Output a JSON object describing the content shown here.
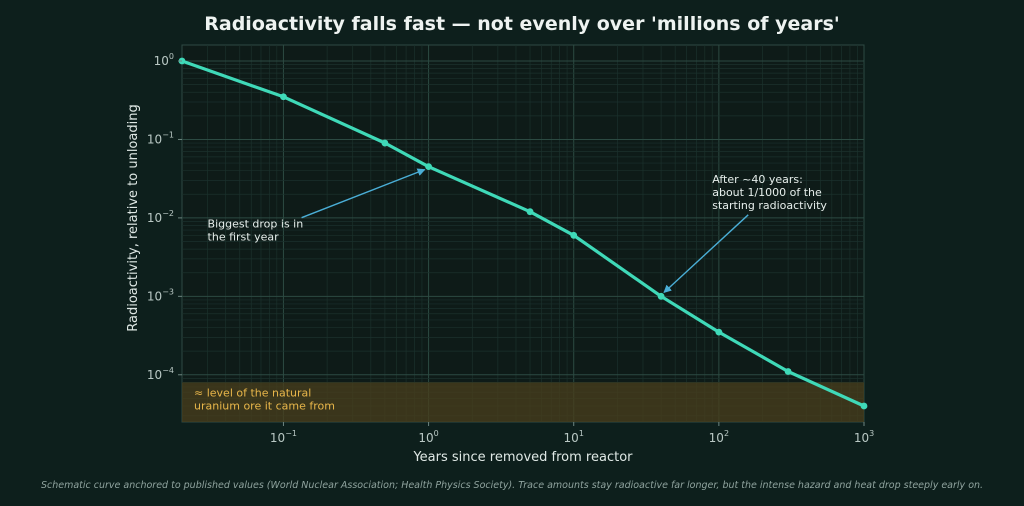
{
  "colors": {
    "background": "#0d1f1c",
    "plot_background": "#0e1b18",
    "line": "#3fd9b8",
    "band_fill": "#4a3f1c",
    "band_text": "#e8b64a",
    "arrow": "#4aaed6"
  },
  "chart_data": {
    "type": "line",
    "title": "Radioactivity falls fast — not evenly over 'millions of years'",
    "xlabel": "Years since removed from reactor",
    "ylabel": "Radioactivity, relative to unloading",
    "x_scale": "log",
    "y_scale": "log",
    "xlim": [
      0.02,
      1000
    ],
    "ylim": [
      2.5e-05,
      1.6
    ],
    "grid": true,
    "x_ticks": [
      {
        "value": 0.1,
        "base": "10",
        "exp": "−1"
      },
      {
        "value": 1,
        "base": "10",
        "exp": "0"
      },
      {
        "value": 10,
        "base": "10",
        "exp": "1"
      },
      {
        "value": 100,
        "base": "10",
        "exp": "2"
      },
      {
        "value": 1000,
        "base": "10",
        "exp": "3"
      }
    ],
    "y_ticks": [
      {
        "value": 0.0001,
        "base": "10",
        "exp": "−4"
      },
      {
        "value": 0.001,
        "base": "10",
        "exp": "−3"
      },
      {
        "value": 0.01,
        "base": "10",
        "exp": "−2"
      },
      {
        "value": 0.1,
        "base": "10",
        "exp": "−1"
      },
      {
        "value": 1,
        "base": "10",
        "exp": "0"
      }
    ],
    "series": [
      {
        "points": [
          {
            "x": 0.02,
            "y": 1.0
          },
          {
            "x": 0.1,
            "y": 0.35
          },
          {
            "x": 0.5,
            "y": 0.09
          },
          {
            "x": 1,
            "y": 0.045
          },
          {
            "x": 5,
            "y": 0.012
          },
          {
            "x": 10,
            "y": 0.006
          },
          {
            "x": 40,
            "y": 0.001
          },
          {
            "x": 100,
            "y": 0.00035
          },
          {
            "x": 300,
            "y": 0.00011
          },
          {
            "x": 1000,
            "y": 4e-05
          }
        ]
      }
    ],
    "band": {
      "y_low": 2.5e-05,
      "y_high": 8e-05,
      "label_lines": [
        "≈ level of the natural",
        "uranium ore it came from"
      ]
    },
    "annotations": [
      {
        "lines": [
          "Biggest drop is in",
          "the first year"
        ],
        "target": {
          "x": 1,
          "y": 0.045
        },
        "text_anchor": {
          "x": 0.03,
          "y": 0.0075
        }
      },
      {
        "lines": [
          "After ~40 years:",
          "about 1/1000 of the",
          "starting radioactivity"
        ],
        "target": {
          "x": 40,
          "y": 0.001
        },
        "text_anchor": {
          "x": 90,
          "y": 0.028
        }
      }
    ]
  },
  "footnote": "Schematic curve anchored to published values (World Nuclear Association; Health Physics Society). Trace amounts stay radioactive far longer, but the intense hazard and heat drop steeply early on."
}
